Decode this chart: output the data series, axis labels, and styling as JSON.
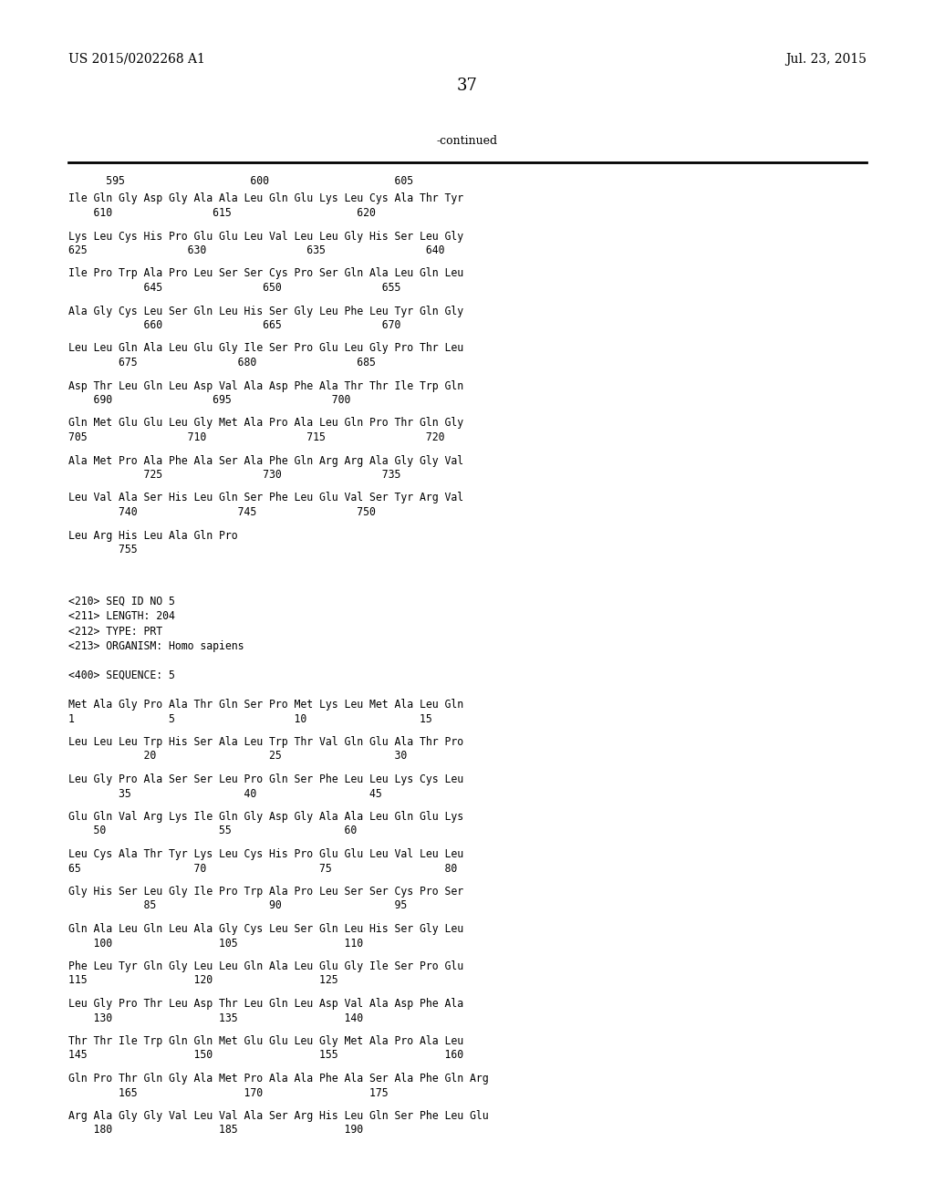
{
  "background_color": "#ffffff",
  "top_left_text": "US 2015/0202268 A1",
  "top_right_text": "Jul. 23, 2015",
  "page_number": "37",
  "continued_label": "-continued",
  "content": [
    {
      "type": "ruler",
      "text": "      595                    600                    605"
    },
    {
      "type": "seq",
      "line1": "Ile Gln Gly Asp Gly Ala Ala Leu Gln Glu Lys Leu Cys Ala Thr Tyr",
      "line2": "    610                615                    620"
    },
    {
      "type": "seq",
      "line1": "Lys Leu Cys His Pro Glu Glu Leu Val Leu Leu Gly His Ser Leu Gly",
      "line2": "625                630                635                640"
    },
    {
      "type": "seq",
      "line1": "Ile Pro Trp Ala Pro Leu Ser Ser Cys Pro Ser Gln Ala Leu Gln Leu",
      "line2": "            645                650                655"
    },
    {
      "type": "seq",
      "line1": "Ala Gly Cys Leu Ser Gln Leu His Ser Gly Leu Phe Leu Tyr Gln Gly",
      "line2": "            660                665                670"
    },
    {
      "type": "seq",
      "line1": "Leu Leu Gln Ala Leu Glu Gly Ile Ser Pro Glu Leu Gly Pro Thr Leu",
      "line2": "        675                680                685"
    },
    {
      "type": "seq",
      "line1": "Asp Thr Leu Gln Leu Asp Val Ala Asp Phe Ala Thr Thr Ile Trp Gln",
      "line2": "    690                695                700"
    },
    {
      "type": "seq",
      "line1": "Gln Met Glu Glu Leu Gly Met Ala Pro Ala Leu Gln Pro Thr Gln Gly",
      "line2": "705                710                715                720"
    },
    {
      "type": "seq",
      "line1": "Ala Met Pro Ala Phe Ala Ser Ala Phe Gln Arg Arg Ala Gly Gly Val",
      "line2": "            725                730                735"
    },
    {
      "type": "seq",
      "line1": "Leu Val Ala Ser His Leu Gln Ser Phe Leu Glu Val Ser Tyr Arg Val",
      "line2": "        740                745                750"
    },
    {
      "type": "seq",
      "line1": "Leu Arg His Leu Ala Gln Pro",
      "line2": "        755"
    },
    {
      "type": "blank2"
    },
    {
      "type": "meta",
      "text": "<210> SEQ ID NO 5"
    },
    {
      "type": "meta",
      "text": "<211> LENGTH: 204"
    },
    {
      "type": "meta",
      "text": "<212> TYPE: PRT"
    },
    {
      "type": "meta",
      "text": "<213> ORGANISM: Homo sapiens"
    },
    {
      "type": "blank1"
    },
    {
      "type": "meta",
      "text": "<400> SEQUENCE: 5"
    },
    {
      "type": "blank1"
    },
    {
      "type": "seq",
      "line1": "Met Ala Gly Pro Ala Thr Gln Ser Pro Met Lys Leu Met Ala Leu Gln",
      "line2": "1               5                   10                  15"
    },
    {
      "type": "seq",
      "line1": "Leu Leu Leu Trp His Ser Ala Leu Trp Thr Val Gln Glu Ala Thr Pro",
      "line2": "            20                  25                  30"
    },
    {
      "type": "seq",
      "line1": "Leu Gly Pro Ala Ser Ser Leu Pro Gln Ser Phe Leu Leu Lys Cys Leu",
      "line2": "        35                  40                  45"
    },
    {
      "type": "seq",
      "line1": "Glu Gln Val Arg Lys Ile Gln Gly Asp Gly Ala Ala Leu Gln Glu Lys",
      "line2": "    50                  55                  60"
    },
    {
      "type": "seq",
      "line1": "Leu Cys Ala Thr Tyr Lys Leu Cys His Pro Glu Glu Leu Val Leu Leu",
      "line2": "65                  70                  75                  80"
    },
    {
      "type": "seq",
      "line1": "Gly His Ser Leu Gly Ile Pro Trp Ala Pro Leu Ser Ser Cys Pro Ser",
      "line2": "            85                  90                  95"
    },
    {
      "type": "seq",
      "line1": "Gln Ala Leu Gln Leu Ala Gly Cys Leu Ser Gln Leu His Ser Gly Leu",
      "line2": "    100                 105                 110"
    },
    {
      "type": "seq",
      "line1": "Phe Leu Tyr Gln Gly Leu Leu Gln Ala Leu Glu Gly Ile Ser Pro Glu",
      "line2": "115                 120                 125"
    },
    {
      "type": "seq",
      "line1": "Leu Gly Pro Thr Leu Asp Thr Leu Gln Leu Asp Val Ala Asp Phe Ala",
      "line2": "    130                 135                 140"
    },
    {
      "type": "seq",
      "line1": "Thr Thr Ile Trp Gln Gln Met Glu Glu Leu Gly Met Ala Pro Ala Leu",
      "line2": "145                 150                 155                 160"
    },
    {
      "type": "seq",
      "line1": "Gln Pro Thr Gln Gly Ala Met Pro Ala Ala Phe Ala Ser Ala Phe Gln Arg",
      "line2": "        165                 170                 175"
    },
    {
      "type": "seq",
      "line1": "Arg Ala Gly Gly Val Leu Val Ala Ser Arg His Leu Gln Ser Phe Leu Glu",
      "line2": "    180                 185                 190"
    }
  ]
}
